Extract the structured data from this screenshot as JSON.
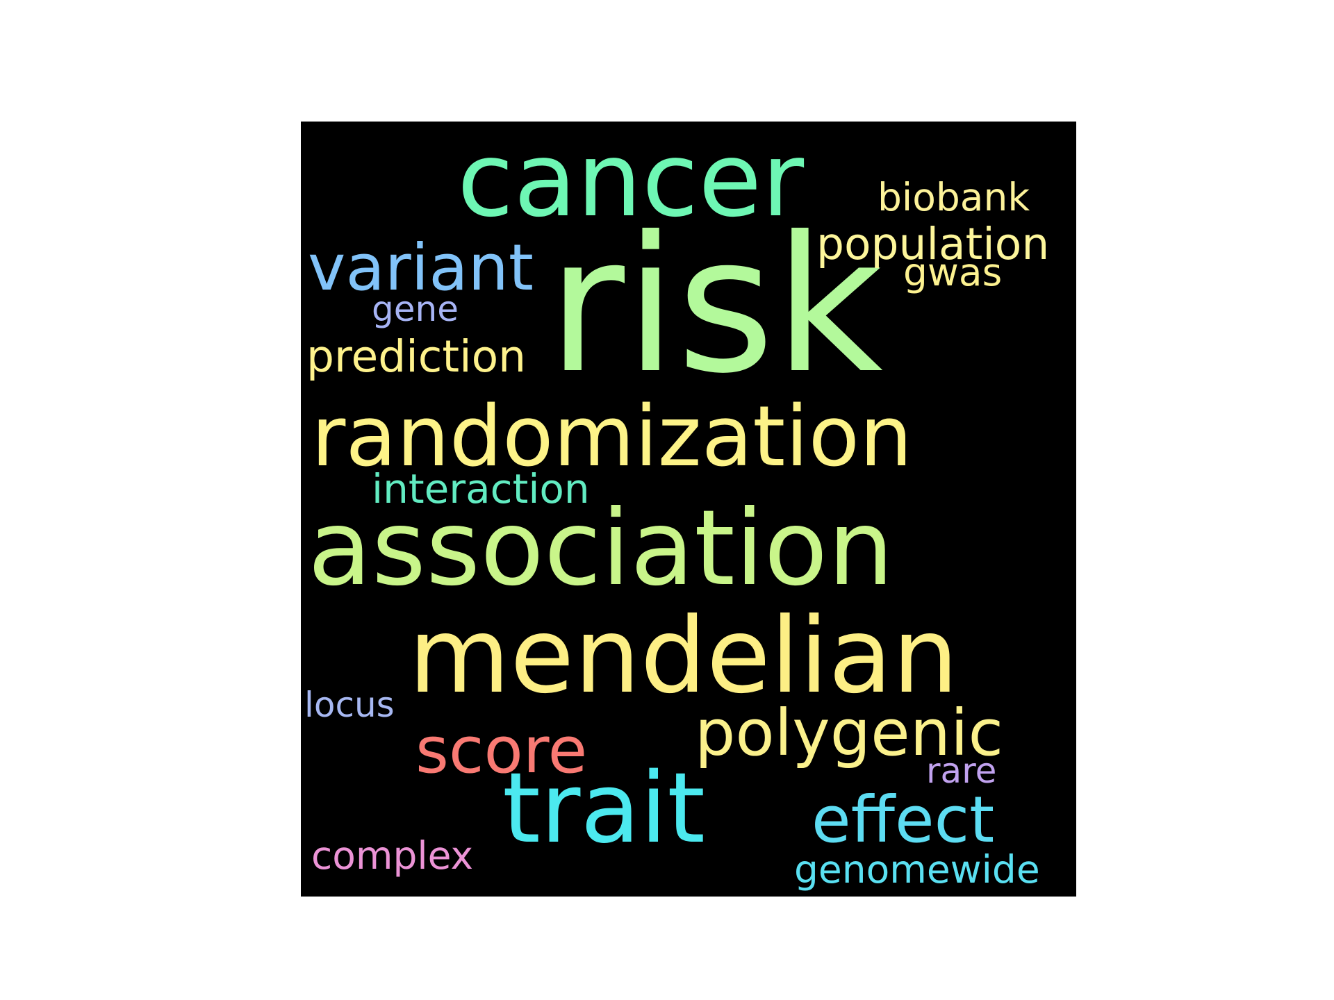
{
  "words": [
    {
      "text": "risk",
      "color": "#b3f99b"
    },
    {
      "text": "cancer",
      "color": "#6ef7b4"
    },
    {
      "text": "biobank",
      "color": "#fdf39a"
    },
    {
      "text": "population",
      "color": "#fdf69b"
    },
    {
      "text": "variant",
      "color": "#82c3f9"
    },
    {
      "text": "gwas",
      "color": "#fdf290"
    },
    {
      "text": "gene",
      "color": "#a7b4f5"
    },
    {
      "text": "prediction",
      "color": "#fef28c"
    },
    {
      "text": "randomization",
      "color": "#fdf388"
    },
    {
      "text": "interaction",
      "color": "#62ecc2"
    },
    {
      "text": "association",
      "color": "#c9f58a"
    },
    {
      "text": "mendelian",
      "color": "#fdef85"
    },
    {
      "text": "locus",
      "color": "#a7b8f2"
    },
    {
      "text": "polygenic",
      "color": "#fbf18c"
    },
    {
      "text": "score",
      "color": "#f97a73"
    },
    {
      "text": "rare",
      "color": "#c1a2ef"
    },
    {
      "text": "trait",
      "color": "#4ce9ef"
    },
    {
      "text": "effect",
      "color": "#5ddcf2"
    },
    {
      "text": "complex",
      "color": "#ec93d6"
    },
    {
      "text": "genomewide",
      "color": "#5ae0f2"
    }
  ]
}
